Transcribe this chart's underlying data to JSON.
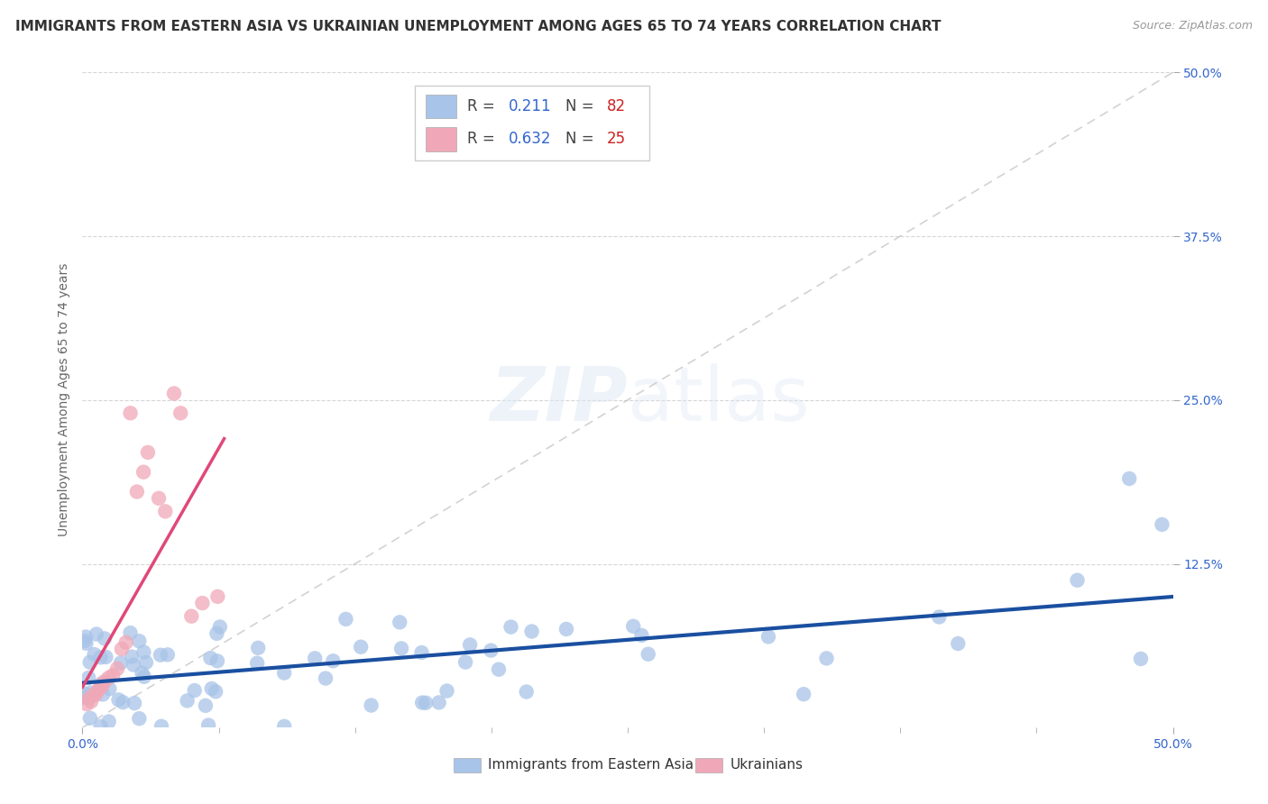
{
  "title": "IMMIGRANTS FROM EASTERN ASIA VS UKRAINIAN UNEMPLOYMENT AMONG AGES 65 TO 74 YEARS CORRELATION CHART",
  "source": "Source: ZipAtlas.com",
  "ylabel": "Unemployment Among Ages 65 to 74 years",
  "xlim": [
    0.0,
    0.5
  ],
  "ylim": [
    0.0,
    0.5
  ],
  "grid_color": "#cccccc",
  "background_color": "#ffffff",
  "blue_scatter_color": "#a8c4e8",
  "pink_scatter_color": "#f0a8b8",
  "blue_line_color": "#1a4fa0",
  "pink_line_color": "#e04878",
  "diag_line_color": "#c0c0c0",
  "R_blue": 0.211,
  "N_blue": 82,
  "R_pink": 0.632,
  "N_pink": 25,
  "title_fontsize": 11,
  "axis_label_fontsize": 10,
  "tick_fontsize": 10,
  "legend_fontsize": 12,
  "tick_color": "#3366cc",
  "text_color": "#333333",
  "source_color": "#999999",
  "ylabel_color": "#666666"
}
